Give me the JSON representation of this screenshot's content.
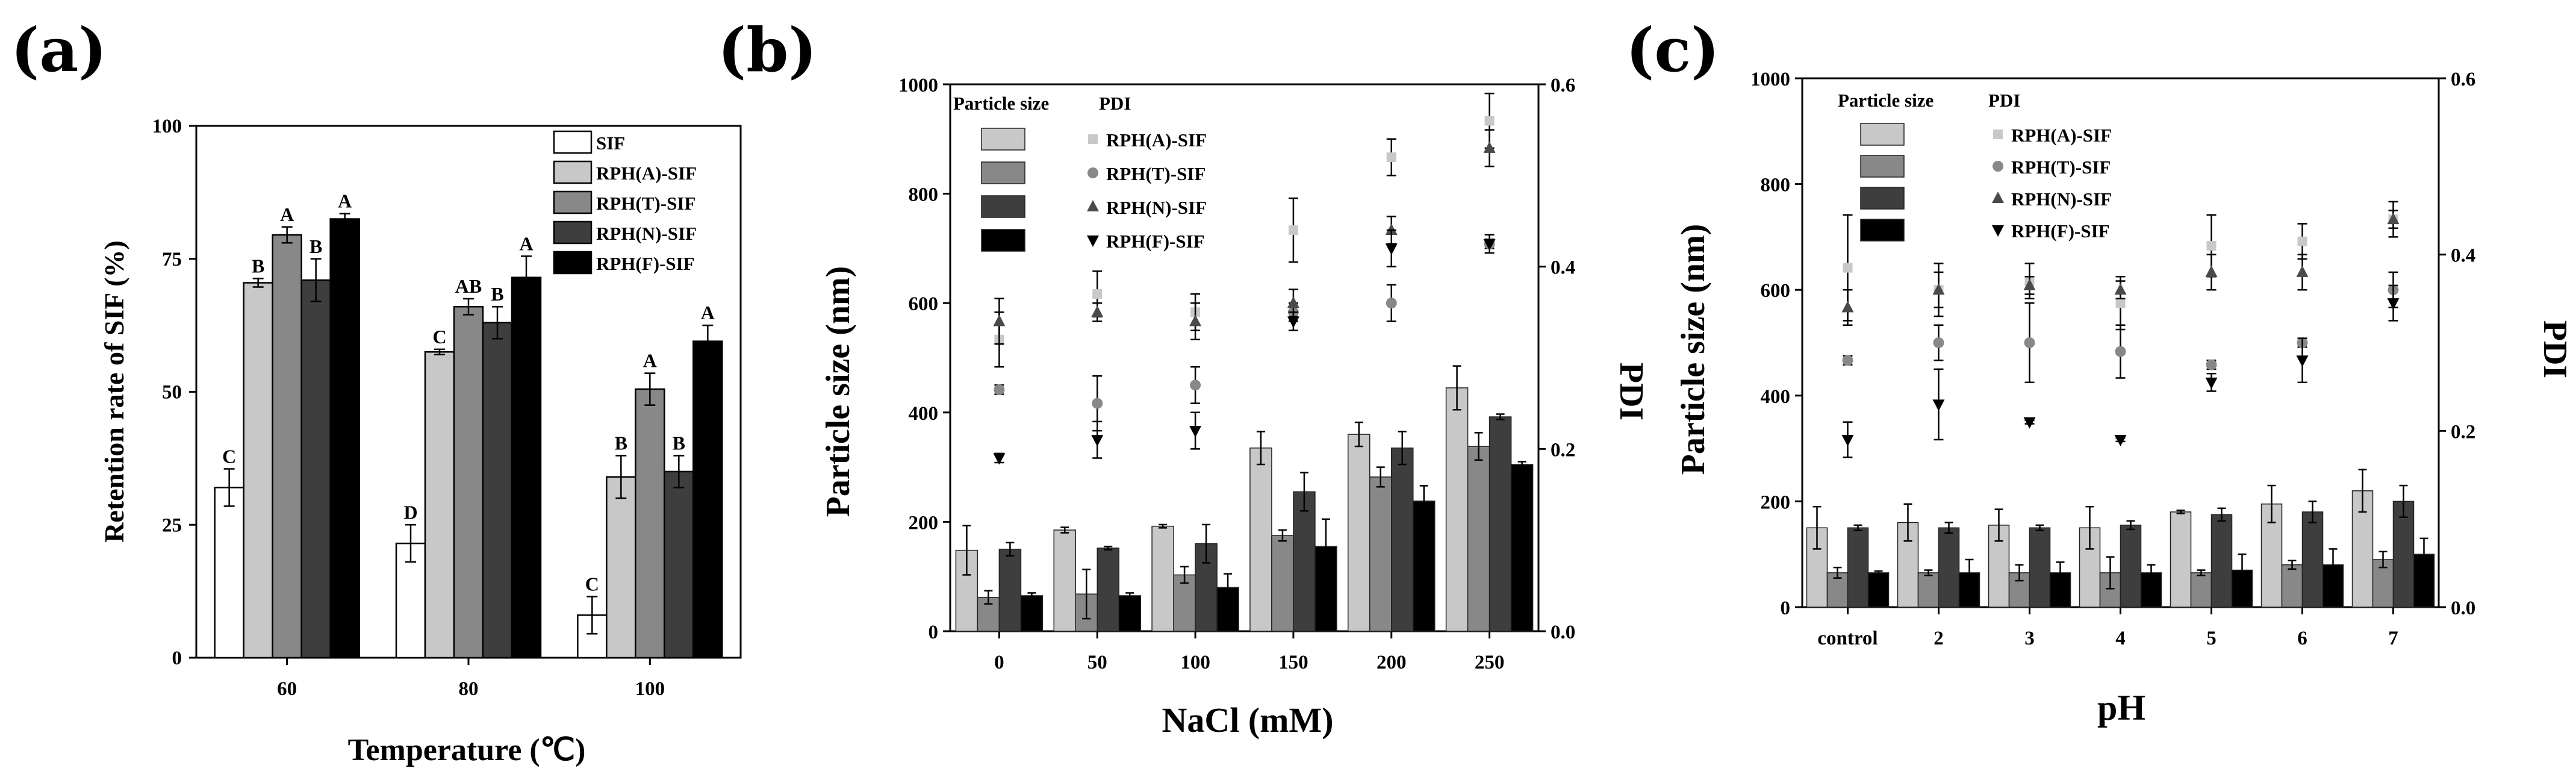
{
  "colors": {
    "SIF": "#ffffff",
    "RPH(A)-SIF": "#c8c8c8",
    "RPH(T)-SIF": "#888888",
    "RPH(N)-SIF": "#3e3e3e",
    "RPH(F)-SIF": "#000000"
  },
  "chart_data": [
    {
      "id": "a",
      "type": "bar",
      "panel_label": "(a)",
      "title": "",
      "xlabel": "Temperature (℃)",
      "ylabel": "Retention rate of SIF (%)",
      "ylim": [
        0,
        100
      ],
      "yticks": [
        "0",
        "25",
        "50",
        "75",
        "100"
      ],
      "categories": [
        "60",
        "80",
        "100"
      ],
      "legend": [
        "SIF",
        "RPH(A)-SIF",
        "RPH(T)-SIF",
        "RPH(N)-SIF",
        "RPH(F)-SIF"
      ],
      "series": [
        {
          "name": "SIF",
          "values": [
            32,
            21.5,
            8
          ],
          "errors": [
            3.5,
            3.5,
            3.5
          ],
          "letters": [
            "C",
            "D",
            "C"
          ]
        },
        {
          "name": "RPH(A)-SIF",
          "values": [
            70.5,
            57.5,
            34
          ],
          "errors": [
            0.8,
            0.5,
            4
          ],
          "letters": [
            "B",
            "C",
            "B"
          ]
        },
        {
          "name": "RPH(T)-SIF",
          "values": [
            79.5,
            66,
            50.5
          ],
          "errors": [
            1.5,
            1.5,
            3
          ],
          "letters": [
            "A",
            "AB",
            "A"
          ]
        },
        {
          "name": "RPH(N)-SIF",
          "values": [
            71,
            63,
            35
          ],
          "errors": [
            4,
            3,
            3
          ],
          "letters": [
            "B",
            "B",
            "B"
          ]
        },
        {
          "name": "RPH(F)-SIF",
          "values": [
            82.5,
            71.5,
            59.5
          ],
          "errors": [
            1,
            4,
            3
          ],
          "letters": [
            "A",
            "A",
            "A"
          ]
        }
      ]
    },
    {
      "id": "b",
      "type": "bar",
      "panel_label": "(b)",
      "title": "",
      "xlabel": "NaCl  (mM)",
      "ylabel": "Particle size (nm)",
      "y2label": "PDI",
      "ylim": [
        0,
        1000
      ],
      "y2lim": [
        0,
        0.6
      ],
      "yticks": [
        "0",
        "200",
        "400",
        "600",
        "800",
        "1000"
      ],
      "y2ticks": [
        "0.0",
        "0.2",
        "0.4",
        "0.6"
      ],
      "categories": [
        "0",
        "50",
        "100",
        "150",
        "200",
        "250"
      ],
      "legend_titles": [
        "Particle size",
        "PDI"
      ],
      "legend": [
        "RPH(A)-SIF",
        "RPH(T)-SIF",
        "RPH(N)-SIF",
        "RPH(F)-SIF"
      ],
      "series": [
        {
          "name": "RPH(A)-SIF",
          "values": [
            148,
            185,
            192,
            335,
            360,
            445
          ],
          "errors": [
            45,
            5,
            3,
            30,
            22,
            40
          ]
        },
        {
          "name": "RPH(T)-SIF",
          "values": [
            62,
            68,
            103,
            175,
            282,
            338
          ],
          "errors": [
            12,
            45,
            15,
            10,
            18,
            25
          ]
        },
        {
          "name": "RPH(N)-SIF",
          "values": [
            150,
            152,
            160,
            255,
            335,
            392
          ],
          "errors": [
            12,
            3,
            35,
            35,
            30,
            5
          ]
        },
        {
          "name": "RPH(F)-SIF",
          "values": [
            65,
            65,
            80,
            155,
            238,
            305
          ],
          "errors": [
            5,
            5,
            25,
            50,
            28,
            5
          ]
        }
      ],
      "pdi_series": [
        {
          "name": "RPH(A)-SIF",
          "marker": "square",
          "values": [
            0.32,
            0.37,
            0.35,
            0.44,
            0.52,
            0.56
          ],
          "errors": [
            0.03,
            0.025,
            0.02,
            0.035,
            0.02,
            0.03
          ]
        },
        {
          "name": "RPH(T)-SIF",
          "marker": "circle",
          "values": [
            0.265,
            0.25,
            0.27,
            0.35,
            0.36,
            0.425
          ],
          "errors": [
            0.005,
            0.03,
            0.02,
            0.01,
            0.02,
            0.005
          ]
        },
        {
          "name": "RPH(N)-SIF",
          "marker": "triangle-up",
          "values": [
            0.34,
            0.35,
            0.34,
            0.36,
            0.44,
            0.53
          ],
          "errors": [
            0.025,
            0.01,
            0.02,
            0.015,
            0.015,
            0.02
          ]
        },
        {
          "name": "RPH(F)-SIF",
          "marker": "triangle-down",
          "values": [
            0.19,
            0.21,
            0.22,
            0.34,
            0.42,
            0.425
          ],
          "errors": [
            0.005,
            0.02,
            0.02,
            0.01,
            0.02,
            0.01
          ]
        }
      ]
    },
    {
      "id": "c",
      "type": "bar",
      "panel_label": "(c)",
      "title": "",
      "xlabel": "pH",
      "ylabel": "Particle size (nm)",
      "y2label": "PDI",
      "ylim": [
        0,
        1000
      ],
      "y2lim": [
        0,
        0.6
      ],
      "yticks": [
        "0",
        "200",
        "400",
        "600",
        "800",
        "1000"
      ],
      "y2ticks": [
        "0.0",
        "0.2",
        "0.4",
        "0.6"
      ],
      "categories": [
        "control",
        "2",
        "3",
        "4",
        "5",
        "6",
        "7"
      ],
      "legend_titles": [
        "Particle size",
        "PDI"
      ],
      "legend": [
        "RPH(A)-SIF",
        "RPH(T)-SIF",
        "RPH(N)-SIF",
        "RPH(F)-SIF"
      ],
      "series": [
        {
          "name": "RPH(A)-SIF",
          "values": [
            150,
            160,
            155,
            150,
            180,
            195,
            220
          ],
          "errors": [
            40,
            35,
            30,
            40,
            3,
            35,
            40
          ]
        },
        {
          "name": "RPH(T)-SIF",
          "values": [
            65,
            65,
            65,
            65,
            65,
            80,
            90
          ],
          "errors": [
            10,
            5,
            15,
            30,
            5,
            8,
            15
          ]
        },
        {
          "name": "RPH(N)-SIF",
          "values": [
            150,
            150,
            150,
            155,
            175,
            180,
            200
          ],
          "errors": [
            5,
            10,
            5,
            8,
            12,
            20,
            30
          ]
        },
        {
          "name": "RPH(F)-SIF",
          "values": [
            65,
            65,
            65,
            65,
            70,
            80,
            100
          ],
          "errors": [
            3,
            25,
            20,
            15,
            30,
            30,
            30
          ]
        }
      ],
      "pdi_series": [
        {
          "name": "RPH(A)-SIF",
          "marker": "square",
          "values": [
            0.385,
            0.36,
            0.37,
            0.345,
            0.41,
            0.415,
            0.44
          ],
          "errors": [
            0.06,
            0.03,
            0.02,
            0.03,
            0.035,
            0.02,
            0.02
          ]
        },
        {
          "name": "RPH(T)-SIF",
          "marker": "circle",
          "values": [
            0.28,
            0.3,
            0.3,
            0.29,
            0.275,
            0.3,
            0.36
          ],
          "errors": [
            0.005,
            0.02,
            0.045,
            0.03,
            0.005,
            0.005,
            0.02
          ]
        },
        {
          "name": "RPH(N)-SIF",
          "marker": "triangle-up",
          "values": [
            0.34,
            0.36,
            0.365,
            0.36,
            0.38,
            0.38,
            0.44
          ],
          "errors": [
            0.02,
            0.02,
            0.01,
            0.01,
            0.02,
            0.02,
            0.01
          ]
        },
        {
          "name": "RPH(F)-SIF",
          "marker": "triangle-down",
          "values": [
            0.19,
            0.23,
            0.21,
            0.19,
            0.255,
            0.28,
            0.345
          ],
          "errors": [
            0.02,
            0.04,
            0.002,
            0.002,
            0.01,
            0.025,
            0.02
          ]
        }
      ]
    }
  ]
}
